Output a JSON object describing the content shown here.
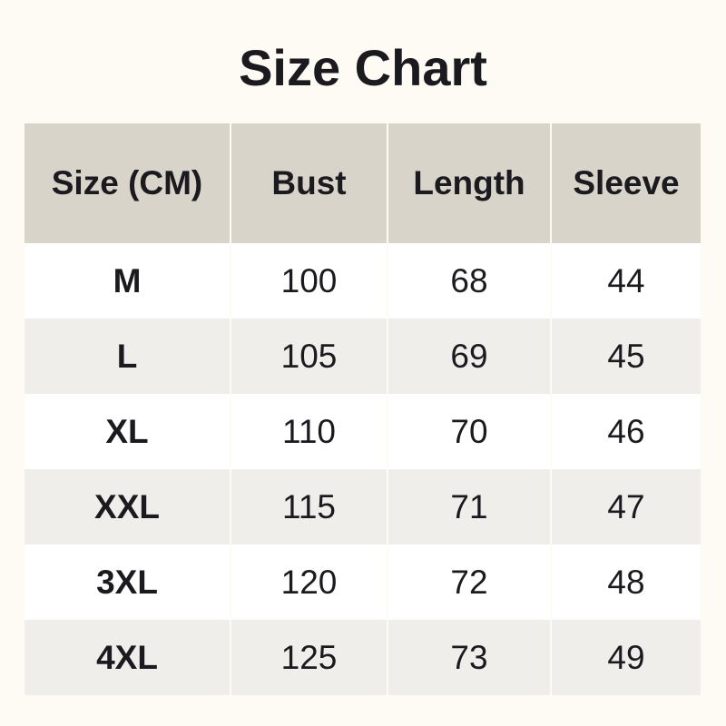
{
  "title": "Size Chart",
  "colors": {
    "background": "#fdfbf4",
    "header": "#d8d4ca",
    "row_odd": "#ffffff",
    "row_even": "#efeeea",
    "text": "#1a1a1f"
  },
  "headers": [
    "Size (CM)",
    "Bust",
    "Length",
    "Sleeve"
  ],
  "rows": [
    [
      "M",
      "100",
      "68",
      "44"
    ],
    [
      "L",
      "105",
      "69",
      "45"
    ],
    [
      "XL",
      "110",
      "70",
      "46"
    ],
    [
      "XXL",
      "115",
      "71",
      "47"
    ],
    [
      "3XL",
      "120",
      "72",
      "48"
    ],
    [
      "4XL",
      "125",
      "73",
      "49"
    ]
  ]
}
